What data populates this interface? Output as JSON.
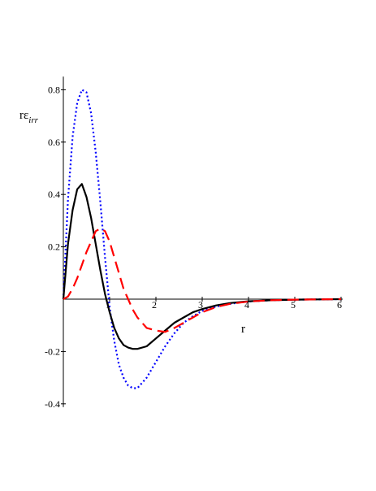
{
  "chart_data": {
    "type": "line",
    "ylabel_main": "rε",
    "ylabel_sub": "irr",
    "xlabel": "r",
    "xlim": [
      0,
      6
    ],
    "ylim": [
      -0.4,
      0.85
    ],
    "x_ticks": [
      {
        "v": 1,
        "label": "1"
      },
      {
        "v": 2,
        "label": "2"
      },
      {
        "v": 3,
        "label": "3"
      },
      {
        "v": 4,
        "label": "4"
      },
      {
        "v": 5,
        "label": "5"
      },
      {
        "v": 6,
        "label": "6"
      }
    ],
    "y_ticks": [
      {
        "v": 0.8,
        "label": "0.8"
      },
      {
        "v": 0.6,
        "label": "0.6"
      },
      {
        "v": 0.4,
        "label": "0.4"
      },
      {
        "v": 0.2,
        "label": "0.2"
      },
      {
        "v": -0.2,
        "label": "-0.2"
      },
      {
        "v": -0.4,
        "label": "-0.4"
      }
    ],
    "series": [
      {
        "color": "#0000ff",
        "dash": "2 3",
        "x": [
          0,
          0.1,
          0.2,
          0.3,
          0.4,
          0.5,
          0.6,
          0.7,
          0.8,
          0.9,
          1.0,
          1.1,
          1.2,
          1.3,
          1.4,
          1.5,
          1.6,
          1.8,
          2.0,
          2.2,
          2.4,
          2.6,
          2.8,
          3.0,
          3.3,
          3.6,
          4.0,
          4.5,
          5.0,
          5.5,
          6.0
        ],
        "y": [
          0,
          0.38,
          0.62,
          0.75,
          0.8,
          0.79,
          0.71,
          0.56,
          0.37,
          0.16,
          -0.03,
          -0.16,
          -0.25,
          -0.3,
          -0.33,
          -0.34,
          -0.34,
          -0.3,
          -0.24,
          -0.18,
          -0.13,
          -0.09,
          -0.065,
          -0.045,
          -0.028,
          -0.018,
          -0.009,
          -0.004,
          -0.002,
          -0.001,
          0
        ]
      },
      {
        "color": "#000000",
        "dash": "",
        "x": [
          0,
          0.1,
          0.2,
          0.3,
          0.4,
          0.5,
          0.6,
          0.7,
          0.8,
          0.9,
          1.0,
          1.1,
          1.2,
          1.3,
          1.4,
          1.5,
          1.6,
          1.8,
          2.0,
          2.2,
          2.4,
          2.6,
          2.8,
          3.0,
          3.3,
          3.6,
          4.0,
          4.5,
          5.0,
          5.5,
          6.0
        ],
        "y": [
          0,
          0.21,
          0.34,
          0.42,
          0.44,
          0.39,
          0.31,
          0.21,
          0.11,
          0.02,
          -0.05,
          -0.11,
          -0.15,
          -0.175,
          -0.185,
          -0.19,
          -0.19,
          -0.18,
          -0.15,
          -0.12,
          -0.09,
          -0.07,
          -0.05,
          -0.038,
          -0.024,
          -0.015,
          -0.008,
          -0.004,
          -0.002,
          -0.001,
          0
        ]
      },
      {
        "color": "#ff0000",
        "dash": "14 7",
        "x": [
          0,
          0.1,
          0.2,
          0.3,
          0.4,
          0.5,
          0.6,
          0.7,
          0.8,
          0.9,
          1.0,
          1.1,
          1.2,
          1.3,
          1.4,
          1.5,
          1.6,
          1.8,
          2.0,
          2.2,
          2.4,
          2.6,
          2.8,
          3.0,
          3.3,
          3.6,
          4.0,
          4.5,
          5.0,
          5.5,
          6.0
        ],
        "y": [
          0,
          0.01,
          0.04,
          0.08,
          0.13,
          0.18,
          0.22,
          0.26,
          0.27,
          0.26,
          0.22,
          0.16,
          0.1,
          0.04,
          0.0,
          -0.04,
          -0.07,
          -0.11,
          -0.12,
          -0.125,
          -0.11,
          -0.09,
          -0.07,
          -0.05,
          -0.03,
          -0.018,
          -0.009,
          -0.004,
          -0.002,
          -0.001,
          0
        ]
      }
    ]
  }
}
